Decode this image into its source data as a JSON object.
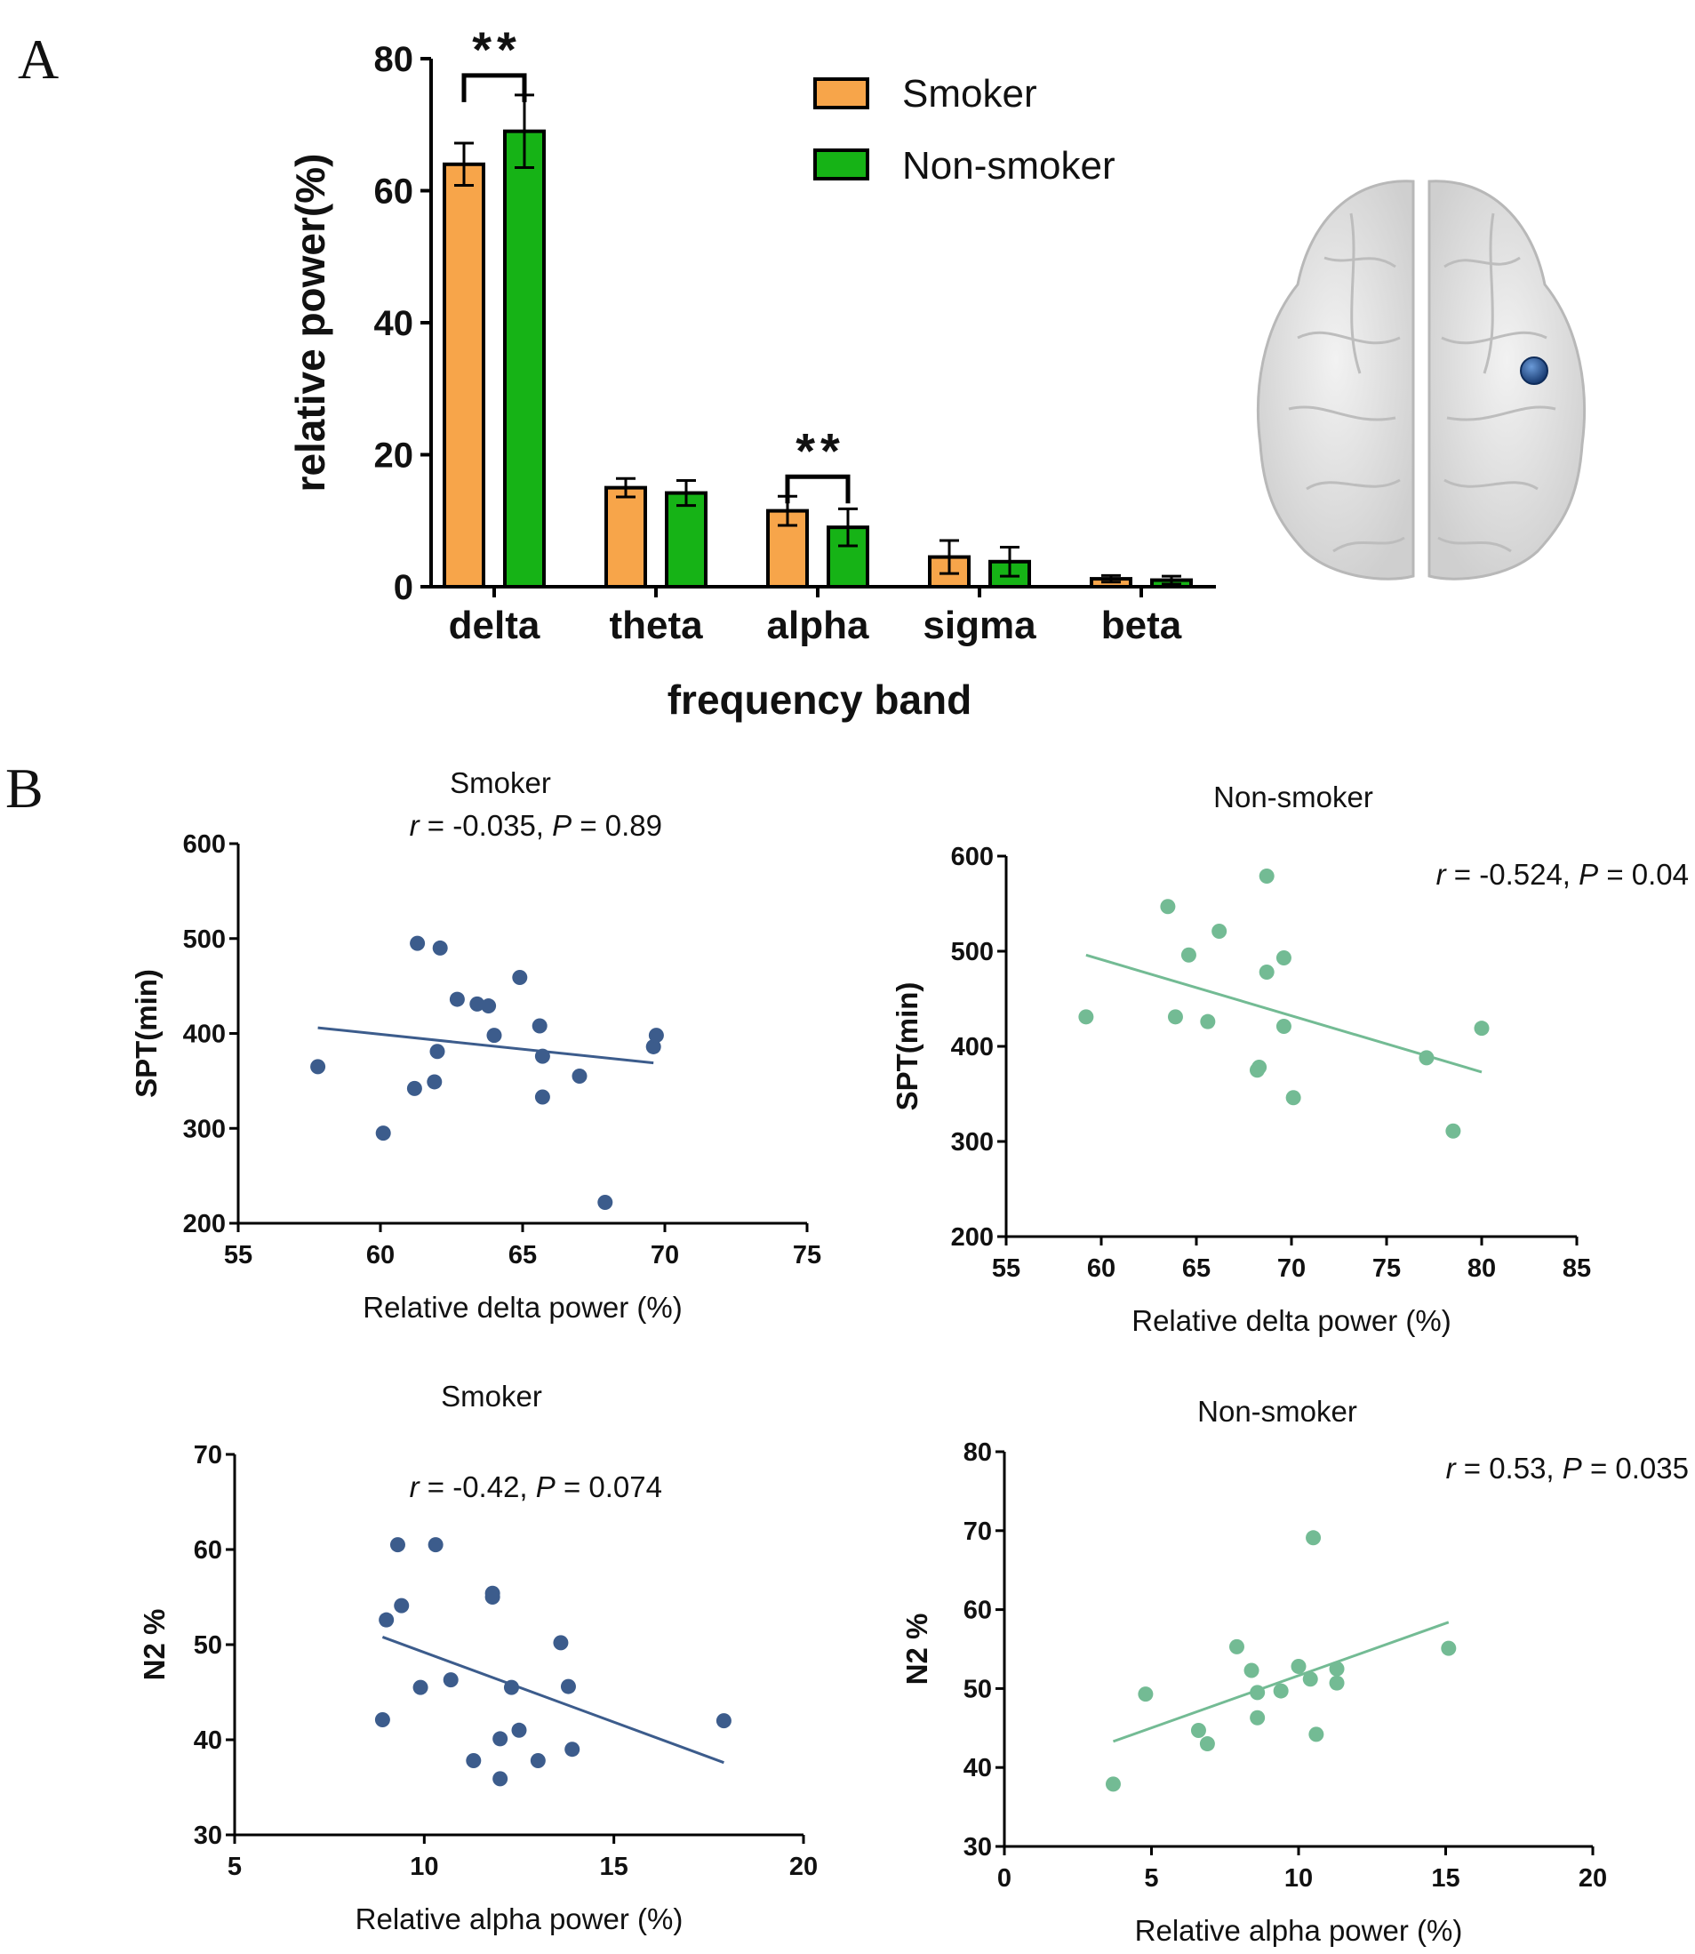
{
  "panel_labels": [
    "A",
    "B"
  ],
  "colors": {
    "smoker_bar": "#f7a54a",
    "nonsmoker_bar": "#16b316",
    "smoker_scatter": "#3c5c8c",
    "nonsmoker_scatter": "#73bb94",
    "brain_fill": "#e2e2e2",
    "brain_marker": "#1f4a8a"
  },
  "chart_data": [
    {
      "id": "A",
      "type": "bar",
      "title": "",
      "xlabel": "frequency band",
      "ylabel": "relative power(%)",
      "categories": [
        "delta",
        "theta",
        "alpha",
        "sigma",
        "beta"
      ],
      "ylim": [
        0,
        80
      ],
      "yticks": [
        "0",
        "20",
        "40",
        "60",
        "80"
      ],
      "series": [
        {
          "name": "Smoker",
          "values": [
            64,
            15,
            11.5,
            4.5,
            1.2
          ],
          "errors": [
            3.2,
            1.4,
            2.2,
            2.5,
            0.5
          ]
        },
        {
          "name": "Non-smoker",
          "values": [
            69,
            14.2,
            9,
            3.8,
            1.0
          ],
          "errors": [
            5.5,
            1.9,
            2.8,
            2.2,
            0.6
          ]
        }
      ],
      "significance": [
        {
          "category": "delta",
          "label": "**"
        },
        {
          "category": "alpha",
          "label": "**"
        }
      ],
      "legend_position": "top-right",
      "grid": false
    },
    {
      "id": "B1",
      "type": "scatter",
      "title": "Smoker",
      "xlabel": "Relative delta power (%)",
      "ylabel": "SPT(min)",
      "xlim": [
        55,
        75
      ],
      "ylim": [
        200,
        600
      ],
      "xticks": [
        "55",
        "60",
        "65",
        "70",
        "75"
      ],
      "yticks": [
        "200",
        "300",
        "400",
        "500",
        "600"
      ],
      "stat_r": "r",
      "stat_r_value": " = -0.035, ",
      "stat_p": "P",
      "stat_p_value": " = 0.89",
      "points": [
        [
          57.8,
          365
        ],
        [
          60.1,
          295
        ],
        [
          61.3,
          495
        ],
        [
          61.2,
          342
        ],
        [
          61.9,
          349
        ],
        [
          62.0,
          381
        ],
        [
          62.1,
          490
        ],
        [
          62.7,
          436
        ],
        [
          63.4,
          431
        ],
        [
          63.8,
          429
        ],
        [
          64.0,
          398
        ],
        [
          64.9,
          459
        ],
        [
          65.6,
          408
        ],
        [
          65.7,
          376
        ],
        [
          65.7,
          333
        ],
        [
          67.0,
          355
        ],
        [
          67.9,
          222
        ],
        [
          69.6,
          386
        ],
        [
          69.7,
          398
        ]
      ],
      "fit": [
        [
          57.8,
          406
        ],
        [
          69.6,
          369
        ]
      ],
      "color_key": "smoker_scatter"
    },
    {
      "id": "B2",
      "type": "scatter",
      "title": "Non-smoker",
      "xlabel": "Relative delta power (%)",
      "ylabel": "SPT(min)",
      "xlim": [
        55,
        85
      ],
      "ylim": [
        200,
        600
      ],
      "xticks": [
        "55",
        "60",
        "65",
        "70",
        "75",
        "80",
        "85"
      ],
      "yticks": [
        "200",
        "300",
        "400",
        "500",
        "600"
      ],
      "stat_r": "r",
      "stat_r_value": " = -0.524, ",
      "stat_p": "P",
      "stat_p_value": " = 0.04",
      "points": [
        [
          59.2,
          431
        ],
        [
          63.5,
          547
        ],
        [
          63.9,
          431
        ],
        [
          64.6,
          496
        ],
        [
          65.6,
          426
        ],
        [
          66.2,
          521
        ],
        [
          68.3,
          378
        ],
        [
          68.2,
          375
        ],
        [
          68.7,
          478
        ],
        [
          68.7,
          579
        ],
        [
          69.6,
          493
        ],
        [
          69.6,
          421
        ],
        [
          70.1,
          346
        ],
        [
          77.1,
          388
        ],
        [
          78.5,
          311
        ],
        [
          80.0,
          419
        ]
      ],
      "fit": [
        [
          59.2,
          496
        ],
        [
          80.0,
          373
        ]
      ],
      "color_key": "nonsmoker_scatter"
    },
    {
      "id": "B3",
      "type": "scatter",
      "title": "Smoker",
      "xlabel": "Relative alpha power (%)",
      "ylabel": "N2 %",
      "xlim": [
        5,
        20
      ],
      "ylim": [
        30,
        70
      ],
      "xticks": [
        "5",
        "10",
        "15",
        "20"
      ],
      "yticks": [
        "30",
        "40",
        "50",
        "60",
        "70"
      ],
      "stat_r": "r",
      "stat_r_value": " = -0.42, ",
      "stat_p": "P",
      "stat_p_value": " = 0.074",
      "points": [
        [
          8.9,
          42.1
        ],
        [
          9.0,
          52.6
        ],
        [
          9.3,
          60.5
        ],
        [
          9.4,
          54.1
        ],
        [
          9.9,
          45.5
        ],
        [
          10.7,
          46.3
        ],
        [
          10.3,
          60.5
        ],
        [
          11.3,
          37.8
        ],
        [
          11.8,
          55.0
        ],
        [
          11.8,
          55.4
        ],
        [
          12.0,
          40.1
        ],
        [
          12.0,
          35.9
        ],
        [
          12.3,
          45.5
        ],
        [
          12.5,
          41.0
        ],
        [
          13.0,
          37.8
        ],
        [
          13.6,
          50.2
        ],
        [
          13.8,
          45.6
        ],
        [
          13.9,
          39.0
        ],
        [
          17.9,
          42.0
        ]
      ],
      "fit": [
        [
          8.9,
          50.8
        ],
        [
          17.9,
          37.6
        ]
      ],
      "color_key": "smoker_scatter"
    },
    {
      "id": "B4",
      "type": "scatter",
      "title": "Non-smoker",
      "xlabel": "Relative alpha power (%)",
      "ylabel": "N2 %",
      "xlim": [
        0,
        20
      ],
      "ylim": [
        30,
        80
      ],
      "xticks": [
        "0",
        "5",
        "10",
        "15",
        "20"
      ],
      "yticks": [
        "30",
        "40",
        "50",
        "60",
        "70",
        "80"
      ],
      "stat_r": "r",
      "stat_r_value": " = 0.53, ",
      "stat_p": "P",
      "stat_p_value": " = 0.035",
      "points": [
        [
          3.7,
          37.9
        ],
        [
          4.8,
          49.3
        ],
        [
          6.6,
          44.7
        ],
        [
          6.9,
          43.0
        ],
        [
          7.9,
          55.3
        ],
        [
          8.4,
          52.3
        ],
        [
          8.6,
          49.5
        ],
        [
          8.6,
          46.3
        ],
        [
          9.4,
          49.7
        ],
        [
          10.0,
          52.8
        ],
        [
          10.4,
          51.2
        ],
        [
          10.5,
          69.1
        ],
        [
          10.6,
          44.2
        ],
        [
          11.3,
          52.5
        ],
        [
          11.3,
          50.7
        ],
        [
          15.1,
          55.1
        ]
      ],
      "fit": [
        [
          3.7,
          43.3
        ],
        [
          15.1,
          58.4
        ]
      ],
      "color_key": "nonsmoker_scatter"
    }
  ]
}
